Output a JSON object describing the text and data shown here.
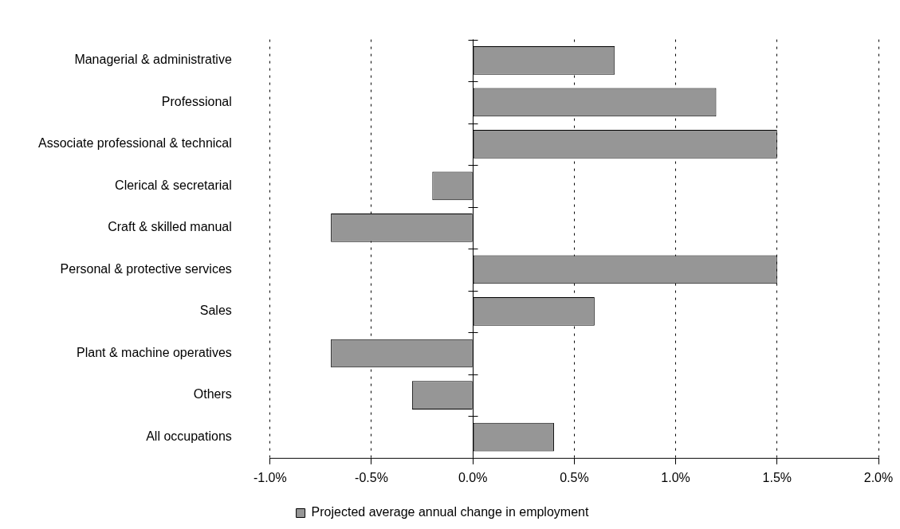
{
  "chart_data": {
    "type": "bar",
    "orientation": "horizontal",
    "categories": [
      "Managerial & administrative",
      "Professional",
      "Associate professional & technical",
      "Clerical & secretarial",
      "Craft & skilled manual",
      "Personal & protective services",
      "Sales",
      "Plant & machine operatives",
      "Others",
      "All occupations"
    ],
    "series": [
      {
        "name": "Projected average annual change in employment",
        "color": "#969696",
        "values": [
          0.7,
          1.2,
          1.5,
          -0.2,
          -0.7,
          1.5,
          0.6,
          -0.7,
          -0.3,
          0.4
        ]
      }
    ],
    "xlim": [
      -1.0,
      2.0
    ],
    "xticks": [
      {
        "value": -1.0,
        "label": "-1.0%"
      },
      {
        "value": -0.5,
        "label": "-0.5%"
      },
      {
        "value": 0,
        "label": "0.0%"
      },
      {
        "value": 0.5,
        "label": "0.5%"
      },
      {
        "value": 1.0,
        "label": "1.0%"
      },
      {
        "value": 1.5,
        "label": "1.5%"
      },
      {
        "value": 2.0,
        "label": "2.0%"
      }
    ],
    "grid": "x",
    "legend": "bottom"
  }
}
